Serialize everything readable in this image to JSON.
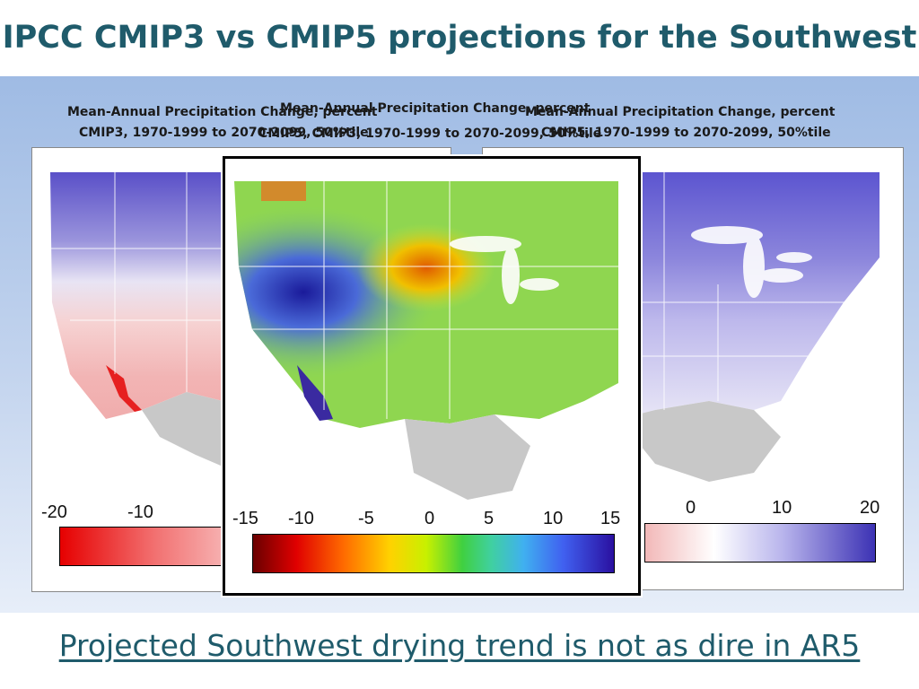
{
  "title": "IPCC CMIP3 vs CMIP5 projections for the Southwest",
  "footer": "Projected Southwest drying trend is not as dire in AR5",
  "maps": {
    "left": {
      "caption1": "Mean-Annual Precipitation Change, percent",
      "caption2": "CMIP3, 1970-1999 to 2070-2099, 50%tile",
      "ticks": [
        "-20",
        "-10"
      ]
    },
    "center": {
      "caption1": "Mean-Annual Precipitation Change, percent",
      "caption2": "CMIP5, CMIP3, 1970-1999 to 2070-2099, 50%tile",
      "ticks": [
        "-15",
        "-10",
        "-5",
        "0",
        "5",
        "10",
        "15"
      ]
    },
    "right": {
      "caption1": "Mean-Annual Precipitation Change, percent",
      "caption2": "CMIP5, 1970-1999 to 2070-2099, 50%tile",
      "ticks": [
        "0",
        "10",
        "20"
      ]
    }
  },
  "colors": {
    "title": "#1f5b6b",
    "drying": "#e30000",
    "wetting": "#3c32b4",
    "land_outside": "#c8c8c8"
  }
}
